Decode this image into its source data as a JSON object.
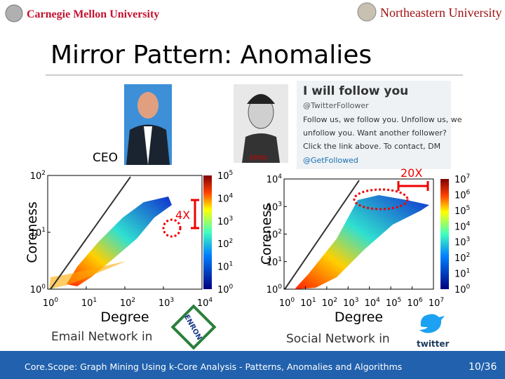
{
  "header": {
    "left_logo": "Carnegie Mellon University",
    "right_logo": "Northeastern University"
  },
  "title": "Mirror Pattern: Anomalies",
  "photos": {
    "ceo": "CEO",
    "pimp": "pimp"
  },
  "tweet": {
    "heading": "I will follow you",
    "handle": "@TwitterFollower",
    "lines": [
      "Follow us, we follow you. Unfollow us, we",
      "unfollow you. Want another follower?",
      "Click the link above. To contact, DM"
    ],
    "link": "@GetFollowed"
  },
  "plots": [
    {
      "x_label": "Degree",
      "y_label": "Coreness",
      "tick_base": "10",
      "xtick_exps": [
        "0",
        "1",
        "2",
        "3",
        "4"
      ],
      "ytick_exps": [
        "0",
        "1",
        "2"
      ],
      "cbar_exps": [
        "0",
        "1",
        "2",
        "3",
        "4",
        "5"
      ],
      "annotation": "4X",
      "caption": "Email Network in",
      "logo": "ENRON"
    },
    {
      "x_label": "Degree",
      "y_label": "Coreness",
      "tick_base": "10",
      "xtick_exps": [
        "0",
        "1",
        "2",
        "3",
        "4",
        "5",
        "6",
        "7"
      ],
      "ytick_exps": [
        "0",
        "1",
        "2",
        "3",
        "4"
      ],
      "cbar_exps": [
        "0",
        "1",
        "2",
        "3",
        "4",
        "5",
        "6",
        "7"
      ],
      "annotation": "20X",
      "caption": "Social Network in",
      "logo": "twitter"
    }
  ],
  "footer": {
    "text": "Core.Scope: Graph Mining Using k-Core Analysis - Patterns, Anomalies and Algorithms",
    "page": "10/36"
  }
}
